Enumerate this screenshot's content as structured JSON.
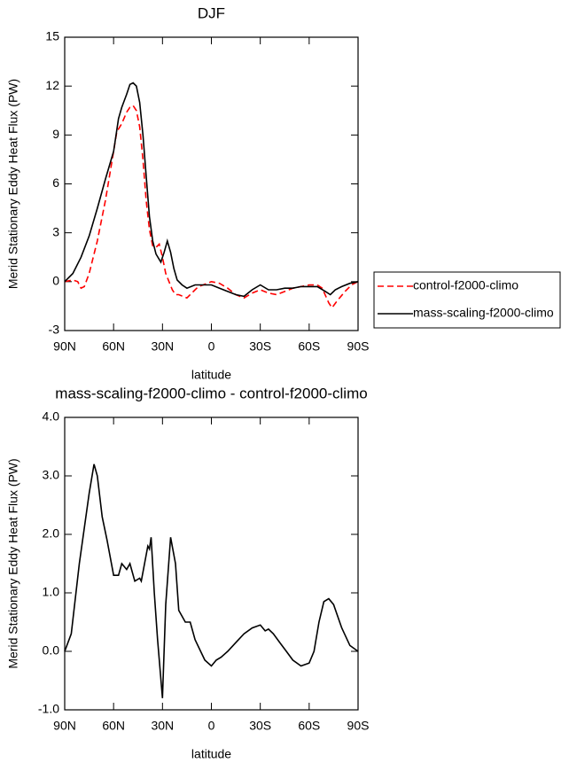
{
  "chart_data": [
    {
      "type": "line",
      "title": "DJF",
      "xlabel": "latitude",
      "ylabel": "Merid Stationary Eddy Heat Flux (PW)",
      "xlim": [
        90,
        -90
      ],
      "xticks": [
        {
          "value": 90,
          "label": "90N"
        },
        {
          "value": 60,
          "label": "60N"
        },
        {
          "value": 30,
          "label": "30N"
        },
        0,
        {
          "value": -30,
          "label": "30S"
        },
        {
          "value": -60,
          "label": "60S"
        },
        {
          "value": -90,
          "label": "90S"
        }
      ],
      "ylim": [
        -3,
        15
      ],
      "yticks": [
        -3,
        0,
        3,
        6,
        9,
        12,
        15
      ],
      "legend": "right",
      "series": [
        {
          "name": "control-f2000-climo",
          "color": "#ff0000",
          "line_style": "dashed",
          "x": [
            90,
            85,
            82,
            80,
            78,
            75,
            70,
            65,
            60,
            58,
            55,
            52,
            50,
            48,
            46,
            44,
            42,
            40,
            38,
            36,
            34,
            32,
            30,
            28,
            26,
            24,
            22,
            20,
            15,
            12,
            8,
            5,
            0,
            -5,
            -10,
            -15,
            -20,
            -25,
            -30,
            -35,
            -40,
            -45,
            -50,
            -55,
            -60,
            -65,
            -68,
            -72,
            -74,
            -77,
            -82,
            -86,
            -90
          ],
          "values": [
            0,
            0.1,
            0,
            -0.4,
            -0.3,
            0.5,
            2.5,
            5,
            8,
            9.2,
            9.7,
            10.4,
            10.7,
            10.8,
            10.5,
            9.5,
            7.5,
            5,
            3.2,
            2.2,
            2.1,
            2.3,
            1.5,
            0.5,
            0,
            -0.5,
            -0.8,
            -0.8,
            -1,
            -0.7,
            -0.3,
            -0.2,
            0,
            -0.1,
            -0.4,
            -0.8,
            -1,
            -0.7,
            -0.5,
            -0.7,
            -0.8,
            -0.6,
            -0.4,
            -0.3,
            -0.2,
            -0.2,
            -0.4,
            -1.3,
            -1.6,
            -1.2,
            -0.6,
            -0.2,
            0
          ]
        },
        {
          "name": "mass-scaling-f2000-climo",
          "color": "#000000",
          "line_style": "solid",
          "x": [
            90,
            85,
            80,
            75,
            70,
            65,
            60,
            57,
            55,
            52,
            50,
            48,
            46,
            44,
            42,
            40,
            38,
            36,
            34,
            31,
            29,
            27,
            25,
            23,
            21,
            18,
            15,
            10,
            5,
            0,
            -5,
            -10,
            -15,
            -20,
            -25,
            -30,
            -35,
            -40,
            -45,
            -50,
            -55,
            -60,
            -65,
            -70,
            -73,
            -76,
            -80,
            -85,
            -90
          ],
          "values": [
            0,
            0.5,
            1.5,
            2.8,
            4.5,
            6.3,
            8,
            10,
            10.7,
            11.5,
            12.1,
            12.2,
            12,
            11,
            9,
            6.5,
            4,
            2.5,
            1.7,
            1.2,
            1.8,
            2.5,
            1.8,
            0.8,
            0.1,
            -0.2,
            -0.4,
            -0.2,
            -0.2,
            -0.2,
            -0.4,
            -0.6,
            -0.8,
            -0.9,
            -0.5,
            -0.2,
            -0.5,
            -0.5,
            -0.4,
            -0.4,
            -0.3,
            -0.3,
            -0.3,
            -0.6,
            -0.8,
            -0.5,
            -0.3,
            -0.1,
            0
          ]
        }
      ]
    },
    {
      "type": "line",
      "title": "mass-scaling-f2000-climo - control-f2000-climo",
      "xlabel": "latitude",
      "ylabel": "Merid Stationary Eddy Heat Flux (PW)",
      "xlim": [
        90,
        -90
      ],
      "xticks": [
        {
          "value": 90,
          "label": "90N"
        },
        {
          "value": 60,
          "label": "60N"
        },
        {
          "value": 30,
          "label": "30N"
        },
        0,
        {
          "value": -30,
          "label": "30S"
        },
        {
          "value": -60,
          "label": "60S"
        },
        {
          "value": -90,
          "label": "90S"
        }
      ],
      "ylim": [
        -1,
        4
      ],
      "yticks": [
        {
          "value": -1,
          "label": "-1.0"
        },
        {
          "value": 0,
          "label": "0.0"
        },
        {
          "value": 1,
          "label": "1.0"
        },
        {
          "value": 2,
          "label": "2.0"
        },
        {
          "value": 3,
          "label": "3.0"
        },
        {
          "value": 4,
          "label": "4.0"
        }
      ],
      "series": [
        {
          "color": "#000000",
          "line_style": "solid",
          "x": [
            90,
            86,
            81,
            75,
            72,
            70,
            67,
            64,
            60,
            57,
            55,
            52,
            50,
            47,
            44,
            43,
            39,
            38,
            37,
            35,
            33,
            30,
            28,
            25,
            22,
            20,
            16,
            13,
            10,
            4,
            0,
            -3,
            -6,
            -10,
            -15,
            -20,
            -25,
            -30,
            -33,
            -35,
            -38,
            -42,
            -46,
            -50,
            -55,
            -60,
            -63,
            -66,
            -69,
            -72,
            -75,
            -80,
            -85,
            -90
          ],
          "values": [
            0,
            0.3,
            1.5,
            2.7,
            3.2,
            3.0,
            2.3,
            1.9,
            1.3,
            1.3,
            1.5,
            1.4,
            1.5,
            1.2,
            1.25,
            1.2,
            1.8,
            1.75,
            1.95,
            1.0,
            0.2,
            -0.8,
            0.8,
            1.95,
            1.5,
            0.7,
            0.5,
            0.5,
            0.2,
            -0.15,
            -0.25,
            -0.15,
            -0.1,
            0,
            0.15,
            0.3,
            0.4,
            0.45,
            0.35,
            0.38,
            0.3,
            0.15,
            0,
            -0.15,
            -0.25,
            -0.2,
            0,
            0.5,
            0.85,
            0.9,
            0.8,
            0.4,
            0.1,
            0
          ]
        }
      ]
    }
  ]
}
